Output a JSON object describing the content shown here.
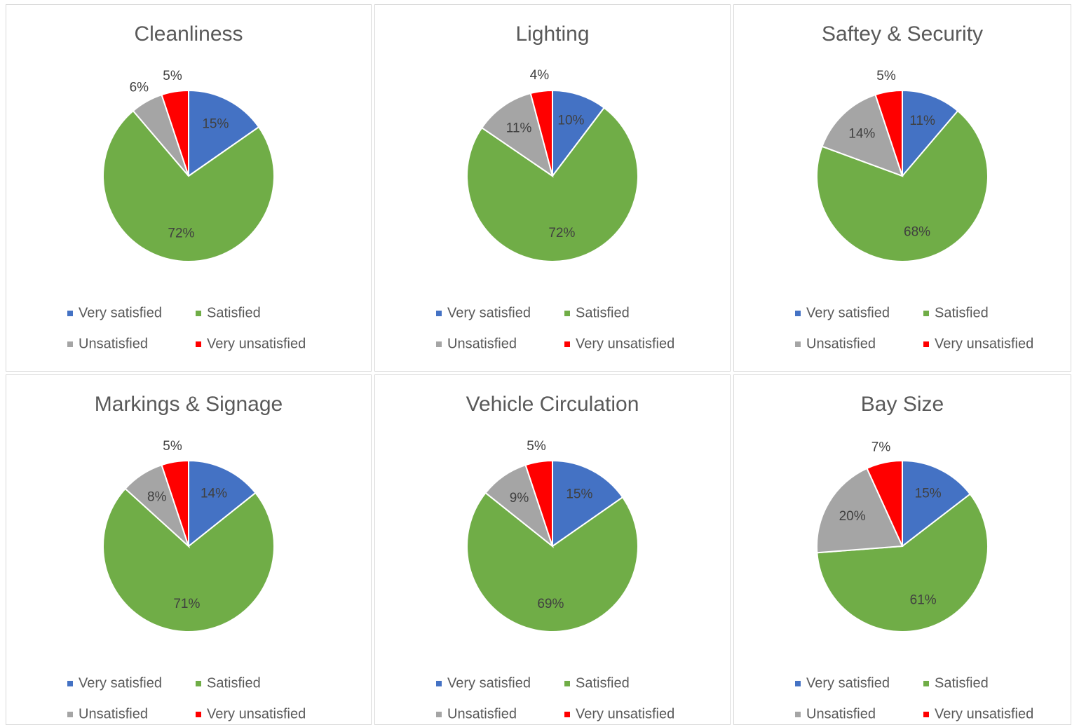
{
  "chart_data": [
    {
      "type": "pie",
      "title": "Cleanliness",
      "categories": [
        "Very satisfied",
        "Satisfied",
        "Unsatisfied",
        "Very unsatisfied"
      ],
      "values": [
        15,
        72,
        6,
        5
      ],
      "value_labels": [
        "15%",
        "72%",
        "6%",
        "5%"
      ],
      "colors": [
        "#4472c4",
        "#70ad47",
        "#a5a5a5",
        "#ff0000"
      ]
    },
    {
      "type": "pie",
      "title": "Lighting",
      "categories": [
        "Very satisfied",
        "Satisfied",
        "Unsatisfied",
        "Very unsatisfied"
      ],
      "values": [
        10,
        72,
        11,
        4
      ],
      "value_labels": [
        "10%",
        "72%",
        "11%",
        "4%"
      ],
      "colors": [
        "#4472c4",
        "#70ad47",
        "#a5a5a5",
        "#ff0000"
      ]
    },
    {
      "type": "pie",
      "title": "Saftey & Security",
      "categories": [
        "Very satisfied",
        "Satisfied",
        "Unsatisfied",
        "Very unsatisfied"
      ],
      "values": [
        11,
        68,
        14,
        5
      ],
      "value_labels": [
        "11%",
        "68%",
        "14%",
        "5%"
      ],
      "colors": [
        "#4472c4",
        "#70ad47",
        "#a5a5a5",
        "#ff0000"
      ]
    },
    {
      "type": "pie",
      "title": "Markings & Signage",
      "categories": [
        "Very satisfied",
        "Satisfied",
        "Unsatisfied",
        "Very unsatisfied"
      ],
      "values": [
        14,
        71,
        8,
        5
      ],
      "value_labels": [
        "14%",
        "71%",
        "8%",
        "5%"
      ],
      "colors": [
        "#4472c4",
        "#70ad47",
        "#a5a5a5",
        "#ff0000"
      ]
    },
    {
      "type": "pie",
      "title": "Vehicle Circulation",
      "categories": [
        "Very satisfied",
        "Satisfied",
        "Unsatisfied",
        "Very unsatisfied"
      ],
      "values": [
        15,
        69,
        9,
        5
      ],
      "value_labels": [
        "15%",
        "69%",
        "9%",
        "5%"
      ],
      "colors": [
        "#4472c4",
        "#70ad47",
        "#a5a5a5",
        "#ff0000"
      ]
    },
    {
      "type": "pie",
      "title": "Bay Size",
      "categories": [
        "Very satisfied",
        "Satisfied",
        "Unsatisfied",
        "Very unsatisfied"
      ],
      "values": [
        15,
        61,
        20,
        7
      ],
      "value_labels": [
        "15%",
        "61%",
        "20%",
        "7%"
      ],
      "colors": [
        "#4472c4",
        "#70ad47",
        "#a5a5a5",
        "#ff0000"
      ]
    }
  ]
}
